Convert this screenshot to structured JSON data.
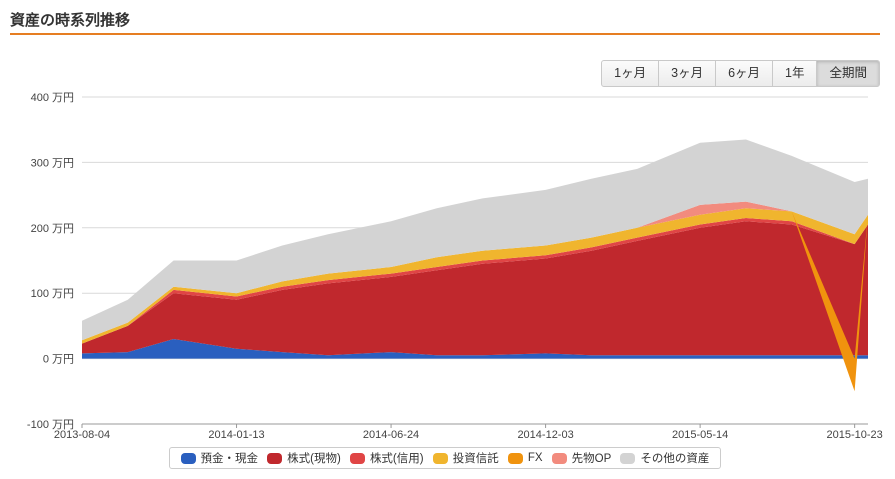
{
  "title": "資産の時系列推移",
  "range_buttons": [
    "1ヶ月",
    "3ヶ月",
    "6ヶ月",
    "1年",
    "全期間"
  ],
  "active_range": "全期間",
  "chart_data": {
    "type": "area",
    "stacked": true,
    "title": "",
    "xlabel": "",
    "ylabel": "",
    "ylim": [
      -100,
      400
    ],
    "yticks": [
      -100,
      0,
      100,
      200,
      300,
      400
    ],
    "ytick_labels": [
      "-100 万円",
      "0 万円",
      "100 万円",
      "200 万円",
      "300 万円",
      "400 万円"
    ],
    "xticks": [
      "2013-08-04",
      "2014-01-13",
      "2014-06-24",
      "2014-12-03",
      "2015-05-14",
      "2015-10-23"
    ],
    "grid": true,
    "legend_position": "bottom",
    "x": [
      "2013-08-04",
      "2013-09-21",
      "2013-11-08",
      "2014-01-13",
      "2014-03-02",
      "2014-04-19",
      "2014-06-24",
      "2014-08-11",
      "2014-09-28",
      "2014-12-03",
      "2015-01-20",
      "2015-03-09",
      "2015-05-14",
      "2015-07-01",
      "2015-08-18",
      "2015-10-23",
      "2015-11-06"
    ],
    "series": [
      {
        "name": "預金・現金",
        "color": "#2a5fbf",
        "values": [
          8,
          10,
          30,
          15,
          10,
          5,
          10,
          5,
          5,
          8,
          5,
          5,
          5,
          5,
          5,
          5,
          5
        ]
      },
      {
        "name": "株式(現物)",
        "color": "#c0282d",
        "values": [
          15,
          40,
          70,
          75,
          95,
          110,
          115,
          130,
          140,
          145,
          160,
          175,
          195,
          205,
          200,
          170,
          200
        ]
      },
      {
        "name": "株式(信用)",
        "color": "#e04545",
        "values": [
          0,
          0,
          5,
          5,
          5,
          5,
          5,
          5,
          5,
          5,
          5,
          5,
          5,
          5,
          5,
          0,
          0
        ]
      },
      {
        "name": "投資信託",
        "color": "#f0b52e",
        "values": [
          5,
          5,
          5,
          5,
          8,
          10,
          10,
          15,
          15,
          15,
          15,
          15,
          15,
          15,
          15,
          15,
          15
        ]
      },
      {
        "name": "FX",
        "color": "#f0930e",
        "values": [
          0,
          0,
          0,
          0,
          0,
          0,
          0,
          0,
          0,
          0,
          0,
          0,
          0,
          0,
          0,
          -50,
          0
        ]
      },
      {
        "name": "先物OP",
        "color": "#f28b7e",
        "values": [
          0,
          0,
          0,
          0,
          0,
          0,
          0,
          0,
          0,
          0,
          0,
          0,
          15,
          10,
          0,
          0,
          0
        ]
      },
      {
        "name": "その他の資産",
        "color": "#d3d3d3",
        "values": [
          30,
          35,
          40,
          50,
          55,
          60,
          70,
          75,
          80,
          85,
          90,
          90,
          95,
          95,
          85,
          80,
          55
        ]
      }
    ]
  }
}
